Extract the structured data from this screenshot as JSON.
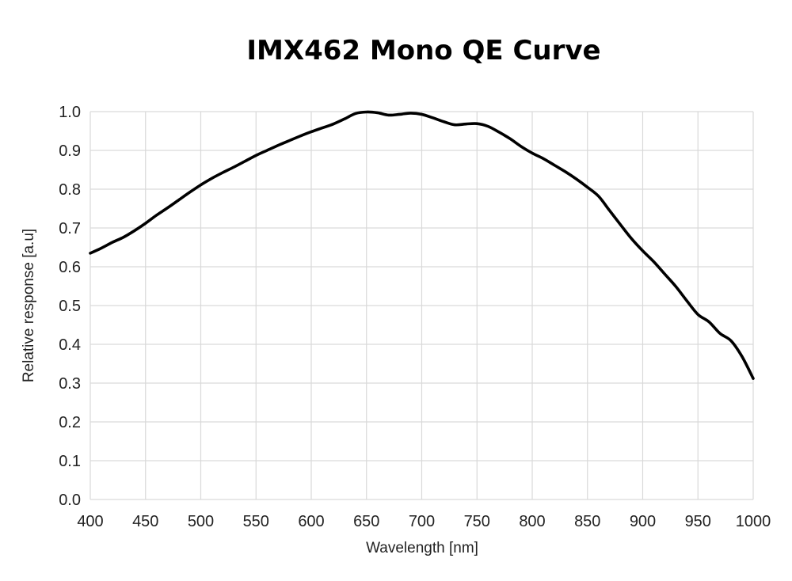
{
  "chart_data": {
    "type": "line",
    "title": "IMX462 Mono QE Curve",
    "xlabel": "Wavelength [nm]",
    "ylabel": "Relative response [a.u]",
    "xlim": [
      400,
      1000
    ],
    "ylim": [
      0,
      1.0
    ],
    "x_ticks": [
      "400",
      "450",
      "500",
      "550",
      "600",
      "650",
      "700",
      "750",
      "800",
      "850",
      "900",
      "950",
      "1000"
    ],
    "y_ticks": [
      "0.0",
      "0.1",
      "0.2",
      "0.3",
      "0.4",
      "0.5",
      "0.6",
      "0.7",
      "0.8",
      "0.9",
      "1.0"
    ],
    "grid": true,
    "legend": "none",
    "series": [
      {
        "color": "#000000",
        "x": [
          400,
          410,
          420,
          430,
          440,
          450,
          460,
          470,
          480,
          490,
          500,
          510,
          520,
          530,
          540,
          550,
          560,
          570,
          580,
          590,
          600,
          610,
          620,
          630,
          640,
          650,
          660,
          670,
          680,
          690,
          700,
          710,
          720,
          730,
          740,
          750,
          760,
          770,
          780,
          790,
          800,
          810,
          820,
          830,
          840,
          850,
          860,
          870,
          880,
          890,
          900,
          910,
          920,
          930,
          940,
          950,
          960,
          970,
          980,
          990,
          1000
        ],
        "y": [
          0.635,
          0.648,
          0.663,
          0.676,
          0.693,
          0.712,
          0.733,
          0.752,
          0.772,
          0.792,
          0.811,
          0.828,
          0.843,
          0.857,
          0.872,
          0.887,
          0.9,
          0.913,
          0.925,
          0.937,
          0.948,
          0.958,
          0.968,
          0.981,
          0.995,
          0.999,
          0.997,
          0.991,
          0.993,
          0.996,
          0.993,
          0.984,
          0.974,
          0.966,
          0.968,
          0.969,
          0.962,
          0.947,
          0.93,
          0.91,
          0.893,
          0.879,
          0.862,
          0.845,
          0.826,
          0.805,
          0.782,
          0.745,
          0.708,
          0.672,
          0.641,
          0.613,
          0.581,
          0.549,
          0.512,
          0.477,
          0.458,
          0.428,
          0.409,
          0.368,
          0.312
        ]
      }
    ]
  }
}
